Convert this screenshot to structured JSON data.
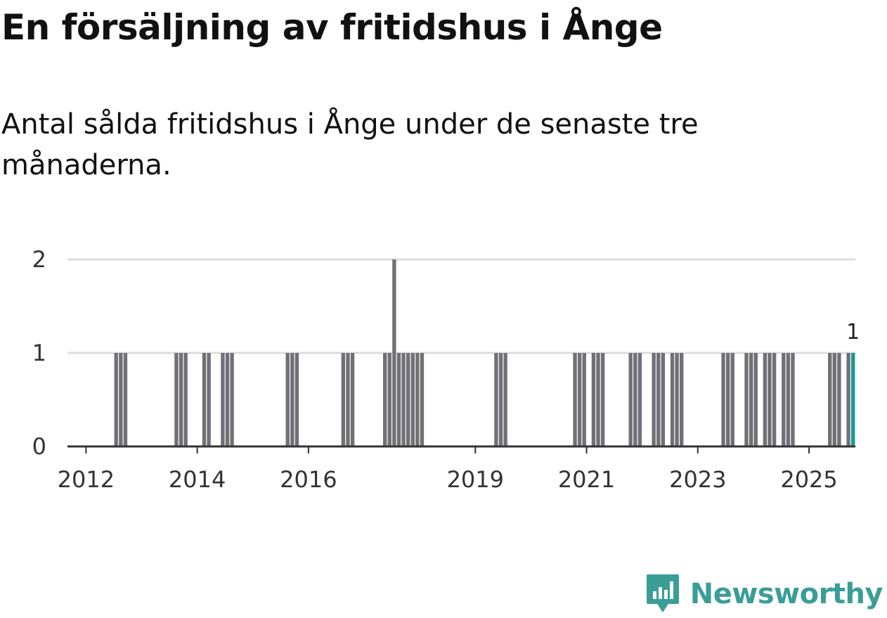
{
  "title": "En försäljning av fritidshus i Ånge",
  "subtitle": "Antal sålda fritidshus i Ånge under de senaste tre månaderna.",
  "brand": {
    "name": "Newsworthy",
    "color": "#3a9e97",
    "icon": "newsworthy-chart-logo-icon"
  },
  "colors": {
    "bar": "#707076",
    "highlight": "#169a93",
    "grid": "#dddddd",
    "axis": "#333333"
  },
  "chart_data": {
    "type": "bar",
    "x_unit": "month",
    "x_range": [
      "2011-09",
      "2025-10"
    ],
    "xticks": [
      {
        "label": "2012",
        "x": "2012-01"
      },
      {
        "label": "2014",
        "x": "2014-01"
      },
      {
        "label": "2016",
        "x": "2016-01"
      },
      {
        "label": "2019",
        "x": "2019-01"
      },
      {
        "label": "2021",
        "x": "2021-01"
      },
      {
        "label": "2023",
        "x": "2023-01"
      },
      {
        "label": "2025",
        "x": "2025-01"
      }
    ],
    "yticks": [
      0,
      1,
      2
    ],
    "ylim": [
      0,
      2
    ],
    "grid": true,
    "data": [
      {
        "x": "2012-07",
        "value": 1
      },
      {
        "x": "2012-08",
        "value": 1
      },
      {
        "x": "2012-09",
        "value": 1
      },
      {
        "x": "2013-08",
        "value": 1
      },
      {
        "x": "2013-09",
        "value": 1
      },
      {
        "x": "2013-10",
        "value": 1
      },
      {
        "x": "2014-02",
        "value": 1
      },
      {
        "x": "2014-03",
        "value": 1
      },
      {
        "x": "2014-06",
        "value": 1
      },
      {
        "x": "2014-07",
        "value": 1
      },
      {
        "x": "2014-08",
        "value": 1
      },
      {
        "x": "2015-08",
        "value": 1
      },
      {
        "x": "2015-09",
        "value": 1
      },
      {
        "x": "2015-10",
        "value": 1
      },
      {
        "x": "2016-08",
        "value": 1
      },
      {
        "x": "2016-09",
        "value": 1
      },
      {
        "x": "2016-10",
        "value": 1
      },
      {
        "x": "2017-05",
        "value": 1
      },
      {
        "x": "2017-06",
        "value": 1
      },
      {
        "x": "2017-07",
        "value": 2
      },
      {
        "x": "2017-08",
        "value": 1
      },
      {
        "x": "2017-09",
        "value": 1
      },
      {
        "x": "2017-10",
        "value": 1
      },
      {
        "x": "2017-11",
        "value": 1
      },
      {
        "x": "2017-12",
        "value": 1
      },
      {
        "x": "2018-01",
        "value": 1
      },
      {
        "x": "2019-05",
        "value": 1
      },
      {
        "x": "2019-06",
        "value": 1
      },
      {
        "x": "2019-07",
        "value": 1
      },
      {
        "x": "2020-10",
        "value": 1
      },
      {
        "x": "2020-11",
        "value": 1
      },
      {
        "x": "2020-12",
        "value": 1
      },
      {
        "x": "2021-02",
        "value": 1
      },
      {
        "x": "2021-03",
        "value": 1
      },
      {
        "x": "2021-04",
        "value": 1
      },
      {
        "x": "2021-10",
        "value": 1
      },
      {
        "x": "2021-11",
        "value": 1
      },
      {
        "x": "2021-12",
        "value": 1
      },
      {
        "x": "2022-03",
        "value": 1
      },
      {
        "x": "2022-04",
        "value": 1
      },
      {
        "x": "2022-05",
        "value": 1
      },
      {
        "x": "2022-07",
        "value": 1
      },
      {
        "x": "2022-08",
        "value": 1
      },
      {
        "x": "2022-09",
        "value": 1
      },
      {
        "x": "2023-06",
        "value": 1
      },
      {
        "x": "2023-07",
        "value": 1
      },
      {
        "x": "2023-08",
        "value": 1
      },
      {
        "x": "2023-11",
        "value": 1
      },
      {
        "x": "2023-12",
        "value": 1
      },
      {
        "x": "2024-01",
        "value": 1
      },
      {
        "x": "2024-03",
        "value": 1
      },
      {
        "x": "2024-04",
        "value": 1
      },
      {
        "x": "2024-05",
        "value": 1
      },
      {
        "x": "2024-07",
        "value": 1
      },
      {
        "x": "2024-08",
        "value": 1
      },
      {
        "x": "2024-09",
        "value": 1
      },
      {
        "x": "2025-05",
        "value": 1
      },
      {
        "x": "2025-06",
        "value": 1
      },
      {
        "x": "2025-07",
        "value": 1
      },
      {
        "x": "2025-09",
        "value": 1
      },
      {
        "x": "2025-10",
        "value": 1,
        "highlight": true,
        "label": "1"
      }
    ]
  }
}
